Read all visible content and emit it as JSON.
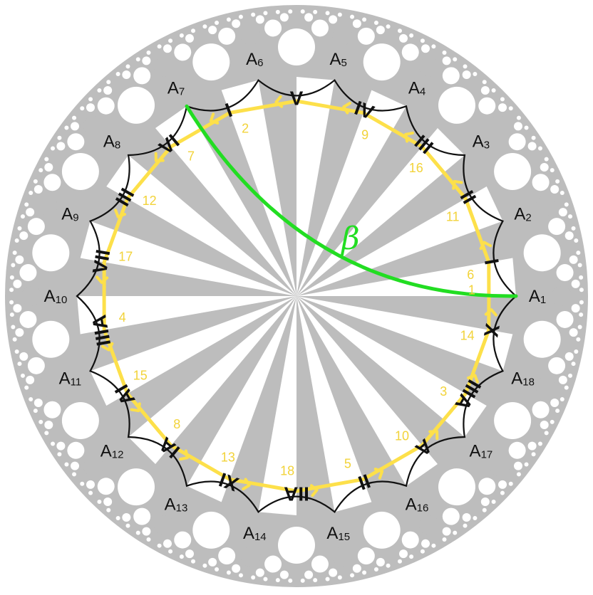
{
  "diagram": {
    "colors": {
      "tile": "#bdbdbd",
      "background": "#ffffff",
      "polygon_edge": "#111111",
      "path": "#fde04a",
      "path_label": "#f2d33a",
      "geodesic": "#22dd22",
      "vertex_label": "#111111"
    },
    "vertices": [
      {
        "base": "A",
        "sub": "1"
      },
      {
        "base": "A",
        "sub": "2"
      },
      {
        "base": "A",
        "sub": "3"
      },
      {
        "base": "A",
        "sub": "4"
      },
      {
        "base": "A",
        "sub": "5"
      },
      {
        "base": "A",
        "sub": "6"
      },
      {
        "base": "A",
        "sub": "7"
      },
      {
        "base": "A",
        "sub": "8"
      },
      {
        "base": "A",
        "sub": "9"
      },
      {
        "base": "A",
        "sub": "10"
      },
      {
        "base": "A",
        "sub": "11"
      },
      {
        "base": "A",
        "sub": "12"
      },
      {
        "base": "A",
        "sub": "13"
      },
      {
        "base": "A",
        "sub": "14"
      },
      {
        "base": "A",
        "sub": "15"
      },
      {
        "base": "A",
        "sub": "16"
      },
      {
        "base": "A",
        "sub": "17"
      },
      {
        "base": "A",
        "sub": "18"
      }
    ],
    "edges": [
      {
        "from": "A1",
        "to": "A2",
        "numeral": "I",
        "path_label": "6"
      },
      {
        "from": "A2",
        "to": "A3",
        "numeral": "II",
        "path_label": "11"
      },
      {
        "from": "A3",
        "to": "A4",
        "numeral": "III",
        "path_label": "16"
      },
      {
        "from": "A4",
        "to": "A5",
        "numeral": "IV",
        "path_label": "9"
      },
      {
        "from": "A5",
        "to": "A6",
        "numeral": "V",
        "path_label": ""
      },
      {
        "from": "A6",
        "to": "A7",
        "numeral": "I",
        "path_label": "2"
      },
      {
        "from": "A7",
        "to": "A8",
        "numeral": "VI",
        "path_label": "7"
      },
      {
        "from": "A8",
        "to": "A9",
        "numeral": "III",
        "path_label": "12"
      },
      {
        "from": "A9",
        "to": "A10",
        "numeral": "VII",
        "path_label": "17"
      },
      {
        "from": "A10",
        "to": "A11",
        "numeral": "IIIA",
        "path_label": "4"
      },
      {
        "from": "A11",
        "to": "A12",
        "numeral": "AI",
        "path_label": "15"
      },
      {
        "from": "A12",
        "to": "A13",
        "numeral": "IA",
        "path_label": "8"
      },
      {
        "from": "A13",
        "to": "A14",
        "numeral": "XI",
        "path_label": "13"
      },
      {
        "from": "A14",
        "to": "A15",
        "numeral": "IIA",
        "path_label": "18"
      },
      {
        "from": "A15",
        "to": "A16",
        "numeral": "II",
        "path_label": "5"
      },
      {
        "from": "A16",
        "to": "A17",
        "numeral": "A",
        "path_label": "10"
      },
      {
        "from": "A17",
        "to": "A18",
        "numeral": "IIIA",
        "path_label": "3"
      },
      {
        "from": "A18",
        "to": "A1",
        "numeral": "X",
        "path_label": "14"
      }
    ],
    "extra_path_labels": [
      "1"
    ],
    "geodesic": {
      "from": "A7",
      "to": "A1",
      "label": "β"
    }
  }
}
